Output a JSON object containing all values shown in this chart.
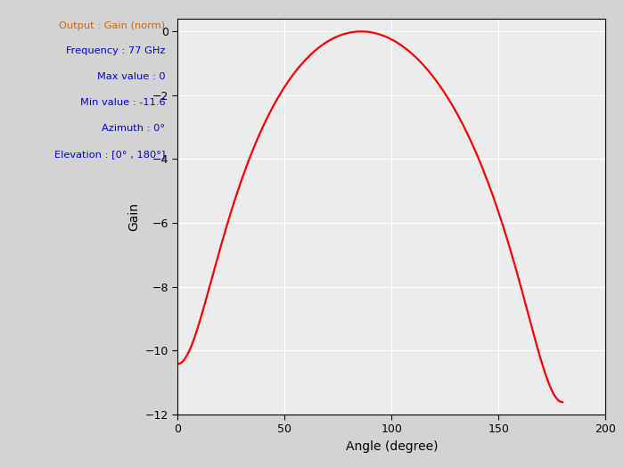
{
  "annotations": [
    {
      "text": "Output : Gain (norm)",
      "color": "#cc6600"
    },
    {
      "text": "Frequency : 77 GHz",
      "color": "#0000dd"
    },
    {
      "text": "Max value : 0",
      "color": "#0000dd"
    },
    {
      "text": "Min value : -11.6",
      "color": "#0000dd"
    },
    {
      "text": "Azimuth : 0°",
      "color": "#0000dd"
    },
    {
      "text": "Elevation : [0° , 180°]",
      "color": "#0000dd"
    }
  ],
  "xlabel": "Angle (degree)",
  "ylabel": "Gain",
  "xlim": [
    0,
    200
  ],
  "ylim": [
    -12,
    0.4
  ],
  "xticks": [
    0,
    50,
    100,
    150,
    200
  ],
  "yticks": [
    0,
    -2,
    -4,
    -6,
    -8,
    -10,
    -12
  ],
  "line_color": "#ff0000",
  "line_width": 1.6,
  "bg_color": "#d3d3d3",
  "axes_bg": "#ececec",
  "grid_color": "#ffffff",
  "alpha_tilt": 0.1373,
  "eps_val": 0.08718
}
